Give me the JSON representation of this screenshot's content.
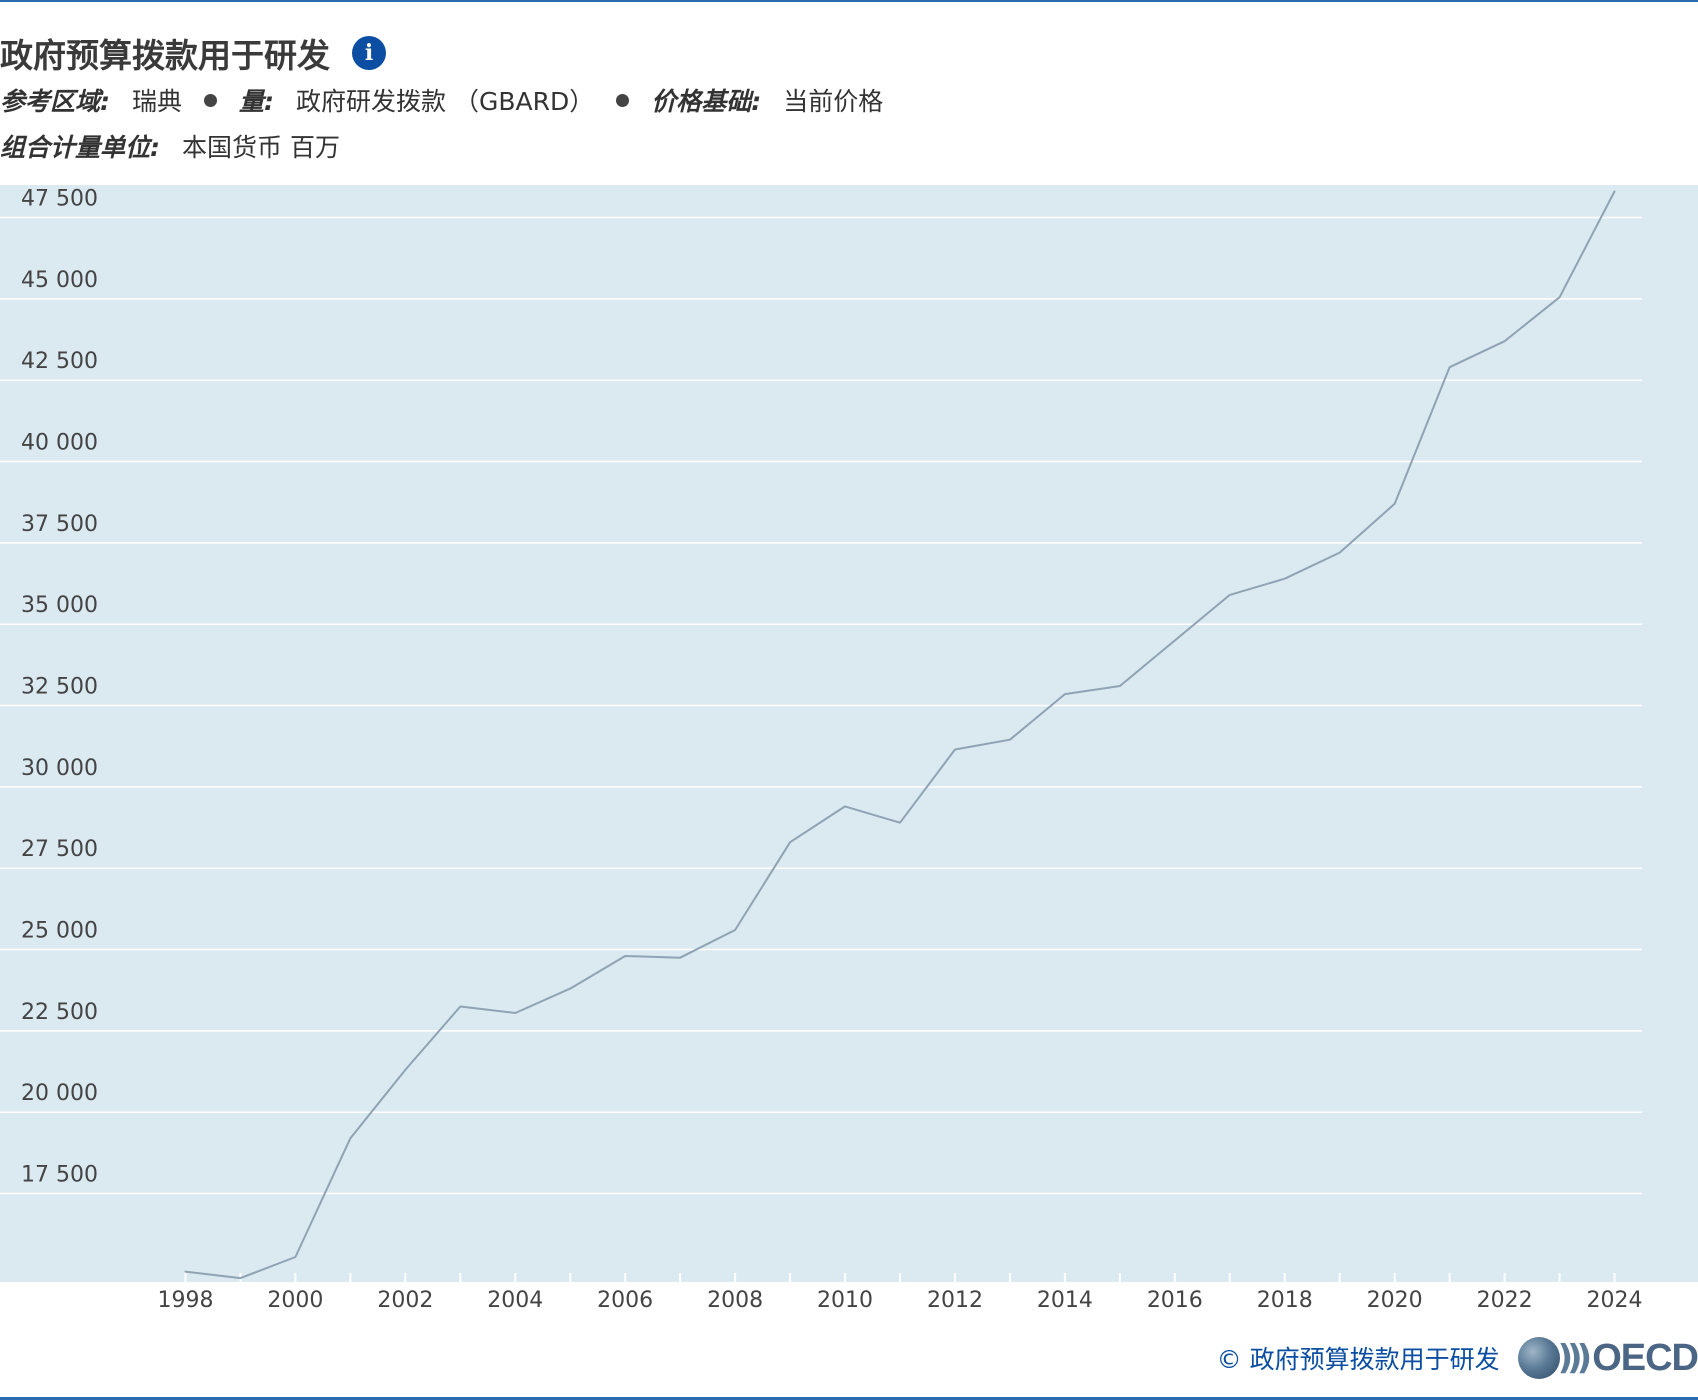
{
  "header": {
    "title": "政府预算拨款用于研发",
    "info_icon": "info-icon",
    "ref_area_label": "参考区域:",
    "ref_area_value": "瑞典",
    "measure_label": "量:",
    "measure_value": "政府研发拨款 （GBARD）",
    "price_base_label": "价格基础:",
    "price_base_value": "当前价格",
    "unit_label": "组合计量单位:",
    "unit_value": "本国货币 百万"
  },
  "footer": {
    "source_text": "©  政府预算拨款用于研发",
    "logo_text": "OECD"
  },
  "colors": {
    "line": "#8fa3b3",
    "plot_background": "#dbe9f1",
    "gridline": "#ffffff",
    "accent": "#0b4ea2"
  },
  "chart_data": {
    "type": "line",
    "title": "政府预算拨款用于研发",
    "xlabel": "",
    "ylabel": "",
    "x": [
      1998,
      1999,
      2000,
      2001,
      2002,
      2003,
      2004,
      2005,
      2006,
      2007,
      2008,
      2009,
      2010,
      2011,
      2012,
      2013,
      2014,
      2015,
      2016,
      2017,
      2018,
      2019,
      2020,
      2021,
      2022,
      2023,
      2024
    ],
    "series": [
      {
        "values": [
          15100,
          14900,
          15550,
          19200,
          21300,
          23250,
          23050,
          23800,
          24800,
          24750,
          25600,
          28300,
          29400,
          28900,
          31150,
          31450,
          32850,
          33100,
          34500,
          35900,
          36400,
          37200,
          38700,
          42900,
          43700,
          45050,
          48300
        ]
      }
    ],
    "xticks": [
      "1998",
      "2000",
      "2002",
      "2004",
      "2006",
      "2008",
      "2010",
      "2012",
      "2014",
      "2016",
      "2018",
      "2020",
      "2022",
      "2024"
    ],
    "yticks": [
      "17 500",
      "20 000",
      "22 500",
      "25 000",
      "27 500",
      "30 000",
      "32 500",
      "35 000",
      "37 500",
      "40 000",
      "42 500",
      "45 000",
      "47 500"
    ],
    "ytick_values": [
      17500,
      20000,
      22500,
      25000,
      27500,
      30000,
      32500,
      35000,
      37500,
      40000,
      42500,
      45000,
      47500
    ],
    "ylim": [
      14750,
      48500
    ],
    "xlim": [
      1997.5,
      2024.5
    ],
    "grid": true,
    "legend": "none"
  }
}
